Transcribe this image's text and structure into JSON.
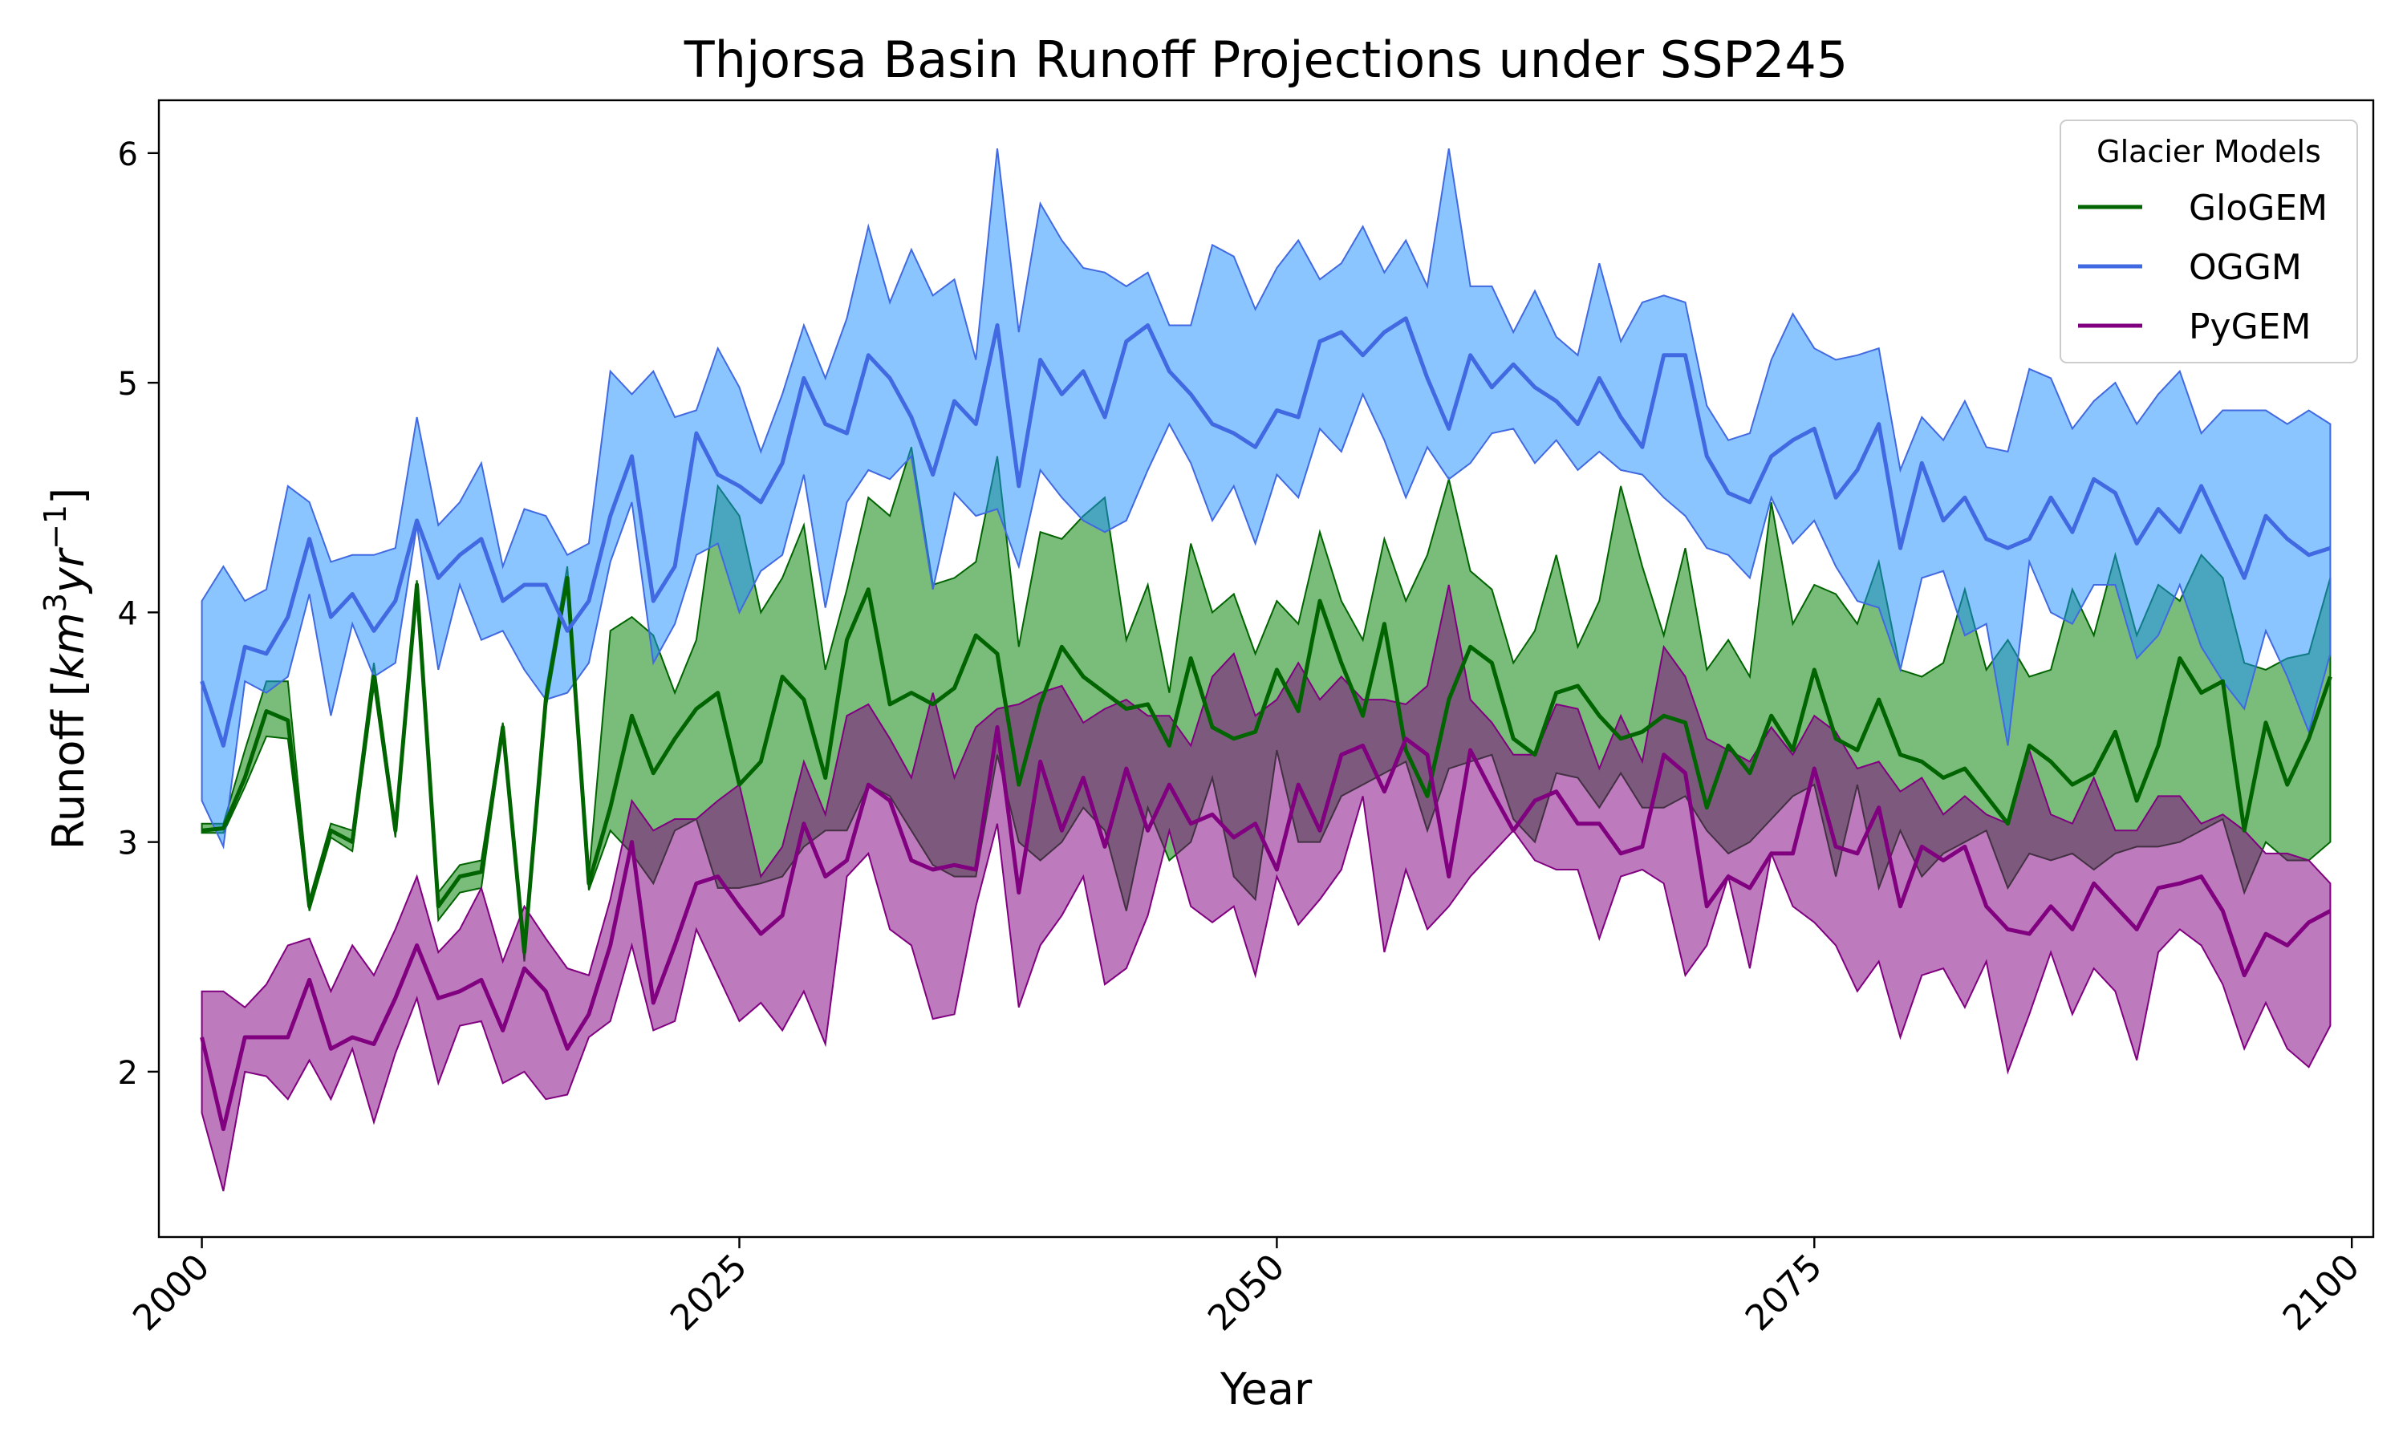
{
  "chart_data": {
    "type": "line",
    "title": "Thjorsa Basin Runoff Projections under SSP245",
    "xlabel": "Year",
    "ylabel": {
      "prefix": "Runoff [",
      "unit_base": "km",
      "unit_exp1": "3",
      "unit_mid": "yr",
      "unit_exp2": "−1",
      "suffix": "]"
    },
    "xlim": [
      1998,
      2101
    ],
    "ylim": [
      1.28,
      6.23
    ],
    "xticks": [
      2000,
      2025,
      2050,
      2075,
      2100
    ],
    "xtick_labels": [
      "2000",
      "2025",
      "2050",
      "2075",
      "2100"
    ],
    "yticks": [
      2,
      3,
      4,
      5,
      6
    ],
    "ytick_labels": [
      "2",
      "3",
      "4",
      "5",
      "6"
    ],
    "x_label_rotation_deg": -45,
    "grid": false,
    "legend": {
      "title": "Glacier Models",
      "placement": "top-right"
    },
    "x": [
      2000,
      2001,
      2002,
      2003,
      2004,
      2005,
      2006,
      2007,
      2008,
      2009,
      2010,
      2011,
      2012,
      2013,
      2014,
      2015,
      2016,
      2017,
      2018,
      2019,
      2020,
      2021,
      2022,
      2023,
      2024,
      2025,
      2026,
      2027,
      2028,
      2029,
      2030,
      2031,
      2032,
      2033,
      2034,
      2035,
      2036,
      2037,
      2038,
      2039,
      2040,
      2041,
      2042,
      2043,
      2044,
      2045,
      2046,
      2047,
      2048,
      2049,
      2050,
      2051,
      2052,
      2053,
      2054,
      2055,
      2056,
      2057,
      2058,
      2059,
      2060,
      2061,
      2062,
      2063,
      2064,
      2065,
      2066,
      2067,
      2068,
      2069,
      2070,
      2071,
      2072,
      2073,
      2074,
      2075,
      2076,
      2077,
      2078,
      2079,
      2080,
      2081,
      2082,
      2083,
      2084,
      2085,
      2086,
      2087,
      2088,
      2089,
      2090,
      2091,
      2092,
      2093,
      2094,
      2095,
      2096,
      2097,
      2098,
      2099
    ],
    "series": [
      {
        "name": "GloGEM",
        "color": "#006400",
        "fill": "#007f00",
        "fill_opacity": 0.52,
        "mean": [
          3.05,
          3.06,
          3.28,
          3.57,
          3.53,
          2.72,
          3.05,
          3.0,
          3.72,
          3.05,
          4.12,
          2.72,
          2.85,
          2.87,
          3.5,
          2.52,
          3.62,
          4.15,
          2.82,
          3.15,
          3.55,
          3.3,
          3.45,
          3.58,
          3.65,
          3.25,
          3.35,
          3.72,
          3.62,
          3.28,
          3.88,
          4.1,
          3.6,
          3.65,
          3.6,
          3.67,
          3.9,
          3.82,
          3.25,
          3.6,
          3.85,
          3.72,
          3.65,
          3.58,
          3.6,
          3.42,
          3.8,
          3.5,
          3.45,
          3.48,
          3.75,
          3.57,
          4.05,
          3.78,
          3.55,
          3.95,
          3.4,
          3.2,
          3.62,
          3.85,
          3.78,
          3.45,
          3.38,
          3.65,
          3.68,
          3.55,
          3.45,
          3.48,
          3.55,
          3.52,
          3.15,
          3.42,
          3.3,
          3.55,
          3.4,
          3.75,
          3.45,
          3.4,
          3.62,
          3.38,
          3.35,
          3.28,
          3.32,
          3.2,
          3.08,
          3.42,
          3.35,
          3.25,
          3.3,
          3.48,
          3.18,
          3.42,
          3.8,
          3.65,
          3.7,
          3.05,
          3.52,
          3.25,
          3.45,
          3.72
        ],
        "lower": [
          3.04,
          3.04,
          3.24,
          3.46,
          3.45,
          2.7,
          3.02,
          2.96,
          3.7,
          3.02,
          4.1,
          2.66,
          2.78,
          2.8,
          3.48,
          2.48,
          3.58,
          4.12,
          2.79,
          3.05,
          2.95,
          2.82,
          3.05,
          3.1,
          2.8,
          2.8,
          2.82,
          2.85,
          2.98,
          3.05,
          3.05,
          3.25,
          3.2,
          3.05,
          2.9,
          2.85,
          2.85,
          3.38,
          3.0,
          2.92,
          3.0,
          3.15,
          3.05,
          2.7,
          3.15,
          2.92,
          3.0,
          3.28,
          2.85,
          2.75,
          3.4,
          3.0,
          3.0,
          3.2,
          3.25,
          3.3,
          3.35,
          3.05,
          3.32,
          3.35,
          3.38,
          3.1,
          3.0,
          3.3,
          3.28,
          3.15,
          3.3,
          3.15,
          3.15,
          3.2,
          3.05,
          2.95,
          3.0,
          3.1,
          3.2,
          3.25,
          2.85,
          3.25,
          2.8,
          3.05,
          2.85,
          2.95,
          3.0,
          3.05,
          2.8,
          2.95,
          2.92,
          2.95,
          2.88,
          2.95,
          2.98,
          2.98,
          3.0,
          3.05,
          3.1,
          2.78,
          3.0,
          2.92,
          2.92,
          3.0
        ],
        "upper": [
          3.08,
          3.08,
          3.4,
          3.7,
          3.7,
          2.75,
          3.08,
          3.05,
          3.78,
          3.08,
          4.14,
          2.78,
          2.9,
          2.92,
          3.52,
          2.56,
          3.66,
          4.2,
          2.85,
          3.92,
          3.98,
          3.9,
          3.65,
          3.88,
          4.55,
          4.42,
          4.0,
          4.15,
          4.38,
          3.75,
          4.1,
          4.5,
          4.42,
          4.72,
          4.12,
          4.15,
          4.22,
          4.68,
          3.85,
          4.35,
          4.32,
          4.42,
          4.5,
          3.88,
          4.12,
          3.65,
          4.3,
          4.0,
          4.08,
          3.82,
          4.05,
          3.95,
          4.35,
          4.05,
          3.88,
          4.32,
          4.05,
          4.25,
          4.58,
          4.18,
          4.1,
          3.78,
          3.92,
          4.25,
          3.85,
          4.05,
          4.55,
          4.2,
          3.9,
          4.28,
          3.75,
          3.88,
          3.72,
          4.48,
          3.95,
          4.12,
          4.08,
          3.95,
          4.22,
          3.75,
          3.72,
          3.78,
          4.1,
          3.75,
          3.88,
          3.72,
          3.75,
          4.1,
          3.9,
          4.25,
          3.9,
          4.12,
          4.05,
          4.25,
          4.15,
          3.78,
          3.75,
          3.8,
          3.82,
          4.15
        ]
      },
      {
        "name": "OGGM",
        "color": "#4169e1",
        "fill": "#1e90ff",
        "fill_opacity": 0.52,
        "mean": [
          3.7,
          3.42,
          3.85,
          3.82,
          3.98,
          4.32,
          3.98,
          4.08,
          3.92,
          4.05,
          4.4,
          4.15,
          4.25,
          4.32,
          4.05,
          4.12,
          4.12,
          3.92,
          4.05,
          4.42,
          4.68,
          4.05,
          4.2,
          4.78,
          4.6,
          4.55,
          4.48,
          4.65,
          5.02,
          4.82,
          4.78,
          5.12,
          5.02,
          4.85,
          4.6,
          4.92,
          4.82,
          5.25,
          4.55,
          5.1,
          4.95,
          5.05,
          4.85,
          5.18,
          5.25,
          5.05,
          4.95,
          4.82,
          4.78,
          4.72,
          4.88,
          4.85,
          5.18,
          5.22,
          5.12,
          5.22,
          5.28,
          5.02,
          4.8,
          5.12,
          4.98,
          5.08,
          4.98,
          4.92,
          4.82,
          5.02,
          4.85,
          4.72,
          5.12,
          5.12,
          4.68,
          4.52,
          4.48,
          4.68,
          4.75,
          4.8,
          4.5,
          4.62,
          4.82,
          4.28,
          4.65,
          4.4,
          4.5,
          4.32,
          4.28,
          4.32,
          4.5,
          4.35,
          4.58,
          4.52,
          4.3,
          4.45,
          4.35,
          4.55,
          4.35,
          4.15,
          4.42,
          4.32,
          4.25,
          4.28
        ],
        "lower": [
          3.18,
          2.98,
          3.7,
          3.65,
          3.72,
          4.08,
          3.55,
          3.95,
          3.72,
          3.78,
          4.38,
          3.75,
          4.12,
          3.88,
          3.92,
          3.75,
          3.62,
          3.65,
          3.78,
          4.22,
          4.48,
          3.78,
          3.95,
          4.25,
          4.3,
          4.0,
          4.18,
          4.25,
          4.6,
          4.02,
          4.48,
          4.62,
          4.58,
          4.68,
          4.1,
          4.52,
          4.42,
          4.45,
          4.2,
          4.62,
          4.5,
          4.4,
          4.35,
          4.4,
          4.62,
          4.82,
          4.65,
          4.4,
          4.55,
          4.3,
          4.6,
          4.5,
          4.8,
          4.7,
          4.95,
          4.75,
          4.5,
          4.72,
          4.58,
          4.65,
          4.78,
          4.8,
          4.65,
          4.75,
          4.62,
          4.7,
          4.62,
          4.6,
          4.5,
          4.42,
          4.28,
          4.25,
          4.15,
          4.5,
          4.3,
          4.4,
          4.2,
          4.05,
          4.02,
          3.75,
          4.15,
          4.18,
          3.9,
          3.95,
          3.42,
          4.22,
          4.0,
          3.95,
          4.12,
          4.12,
          3.8,
          3.9,
          4.12,
          3.85,
          3.7,
          3.58,
          3.92,
          3.72,
          3.48,
          3.82
        ],
        "upper": [
          4.05,
          4.2,
          4.05,
          4.1,
          4.55,
          4.48,
          4.22,
          4.25,
          4.25,
          4.28,
          4.85,
          4.38,
          4.48,
          4.65,
          4.2,
          4.45,
          4.42,
          4.25,
          4.3,
          5.05,
          4.95,
          5.05,
          4.85,
          4.88,
          5.15,
          4.98,
          4.7,
          4.95,
          5.25,
          5.02,
          5.28,
          5.68,
          5.35,
          5.58,
          5.38,
          5.45,
          5.1,
          6.02,
          5.22,
          5.78,
          5.62,
          5.5,
          5.48,
          5.42,
          5.48,
          5.25,
          5.25,
          5.6,
          5.55,
          5.32,
          5.5,
          5.62,
          5.45,
          5.52,
          5.68,
          5.48,
          5.62,
          5.42,
          6.02,
          5.42,
          5.42,
          5.22,
          5.4,
          5.2,
          5.12,
          5.52,
          5.18,
          5.35,
          5.38,
          5.35,
          4.9,
          4.75,
          4.78,
          5.1,
          5.3,
          5.15,
          5.1,
          5.12,
          5.15,
          4.62,
          4.85,
          4.75,
          4.92,
          4.72,
          4.7,
          5.06,
          5.02,
          4.8,
          4.92,
          5.0,
          4.82,
          4.95,
          5.05,
          4.78,
          4.88,
          4.88,
          4.88,
          4.82,
          4.88,
          4.82
        ]
      },
      {
        "name": "PyGEM",
        "color": "#800080",
        "fill": "#800080",
        "fill_opacity": 0.52,
        "mean": [
          2.15,
          1.75,
          2.15,
          2.15,
          2.15,
          2.4,
          2.1,
          2.15,
          2.12,
          2.32,
          2.55,
          2.32,
          2.35,
          2.4,
          2.18,
          2.45,
          2.35,
          2.1,
          2.25,
          2.55,
          3.0,
          2.3,
          2.55,
          2.82,
          2.85,
          2.72,
          2.6,
          2.68,
          3.08,
          2.85,
          2.92,
          3.25,
          3.18,
          2.92,
          2.88,
          2.9,
          2.88,
          3.5,
          2.78,
          3.35,
          3.05,
          3.28,
          2.98,
          3.32,
          3.05,
          3.25,
          3.08,
          3.12,
          3.02,
          3.08,
          2.88,
          3.25,
          3.05,
          3.38,
          3.42,
          3.22,
          3.45,
          3.38,
          2.85,
          3.4,
          3.22,
          3.05,
          3.18,
          3.22,
          3.08,
          3.08,
          2.95,
          2.98,
          3.38,
          3.3,
          2.72,
          2.85,
          2.8,
          2.95,
          2.95,
          3.32,
          2.98,
          2.95,
          3.15,
          2.72,
          2.98,
          2.92,
          2.98,
          2.72,
          2.62,
          2.6,
          2.72,
          2.62,
          2.82,
          2.72,
          2.62,
          2.8,
          2.82,
          2.85,
          2.7,
          2.42,
          2.6,
          2.55,
          2.65,
          2.7
        ],
        "lower": [
          1.82,
          1.48,
          2.0,
          1.98,
          1.88,
          2.05,
          1.88,
          2.1,
          1.78,
          2.08,
          2.32,
          1.95,
          2.2,
          2.22,
          1.95,
          2.0,
          1.88,
          1.9,
          2.15,
          2.22,
          2.55,
          2.18,
          2.22,
          2.62,
          2.42,
          2.22,
          2.3,
          2.18,
          2.35,
          2.12,
          2.85,
          2.95,
          2.62,
          2.55,
          2.23,
          2.25,
          2.72,
          3.08,
          2.28,
          2.55,
          2.68,
          2.85,
          2.38,
          2.45,
          2.68,
          3.05,
          2.72,
          2.65,
          2.72,
          2.42,
          2.85,
          2.64,
          2.75,
          2.88,
          3.2,
          2.52,
          2.88,
          2.62,
          2.72,
          2.85,
          2.95,
          3.05,
          2.92,
          2.88,
          2.88,
          2.58,
          2.85,
          2.88,
          2.82,
          2.42,
          2.55,
          2.85,
          2.45,
          2.95,
          2.72,
          2.65,
          2.55,
          2.35,
          2.48,
          2.15,
          2.42,
          2.45,
          2.28,
          2.48,
          2.0,
          2.25,
          2.52,
          2.25,
          2.45,
          2.35,
          2.05,
          2.52,
          2.62,
          2.55,
          2.38,
          2.1,
          2.3,
          2.1,
          2.02,
          2.2
        ],
        "upper": [
          2.35,
          2.35,
          2.28,
          2.38,
          2.55,
          2.58,
          2.35,
          2.55,
          2.42,
          2.62,
          2.85,
          2.52,
          2.62,
          2.8,
          2.48,
          2.72,
          2.58,
          2.45,
          2.42,
          2.75,
          3.18,
          3.05,
          3.1,
          3.1,
          3.18,
          3.25,
          2.85,
          2.98,
          3.35,
          3.12,
          3.55,
          3.6,
          3.45,
          3.28,
          3.65,
          3.28,
          3.5,
          3.58,
          3.6,
          3.65,
          3.68,
          3.52,
          3.58,
          3.62,
          3.55,
          3.55,
          3.42,
          3.72,
          3.82,
          3.55,
          3.62,
          3.78,
          3.62,
          3.72,
          3.62,
          3.62,
          3.6,
          3.68,
          4.12,
          3.62,
          3.52,
          3.38,
          3.38,
          3.6,
          3.58,
          3.32,
          3.55,
          3.35,
          3.85,
          3.72,
          3.45,
          3.4,
          3.35,
          3.5,
          3.38,
          3.55,
          3.48,
          3.32,
          3.35,
          3.22,
          3.28,
          3.12,
          3.2,
          3.12,
          3.08,
          3.4,
          3.12,
          3.08,
          3.28,
          3.05,
          3.05,
          3.2,
          3.2,
          3.08,
          3.12,
          3.05,
          2.95,
          2.95,
          2.92,
          2.82
        ]
      }
    ]
  }
}
